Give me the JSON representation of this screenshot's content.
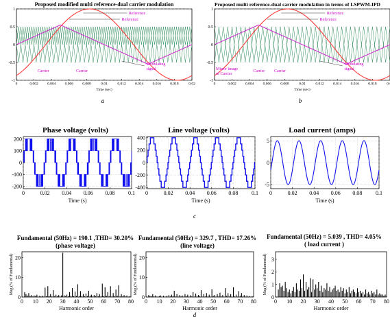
{
  "top": {
    "a": {
      "title": "Proposed modified multi reference-dual carrier modulation",
      "panel_label": "a",
      "xticks": [
        "0",
        "0.002",
        "0.004",
        "0.006",
        "0.008",
        "0.01",
        "0.012",
        "0.014",
        "0.016",
        "0.018",
        "0.02"
      ],
      "yticks": [
        "1",
        "0.5",
        "0",
        "-0.5",
        "-1"
      ],
      "xlabel": "Time (sec)",
      "annotations": {
        "ref1": "Reference",
        "ref2": "Reference",
        "carrier1": "Carrier",
        "carrier2": "Carrier",
        "sub1": "1",
        "sub2": "2",
        "mod1": "Modulating",
        "mod2": "signal"
      }
    },
    "b": {
      "title": "Proposed multi reference-dual carrier modulation in terms of LSPWM-IPD",
      "panel_label": "b",
      "xticks": [
        "0",
        "0.002",
        "0.004",
        "0.006",
        "0.008",
        "0.01",
        "0.012",
        "0.014",
        "0.016",
        "0.018",
        "0.02"
      ],
      "yticks": [
        "1",
        "0.5",
        "0",
        "-0.5",
        "-1"
      ],
      "xlabel": "Time (sec)",
      "annotations": {
        "ref1": "Reference",
        "ref2": "Reference",
        "mirror1": "Mirror image",
        "mirror2": "of Carrier",
        "carrier1": "Carrier",
        "carrier2": "Carrier",
        "sub1": "1",
        "sub2": "2",
        "mod1": "Modulating",
        "mod2": "signal"
      }
    }
  },
  "middle": {
    "panel_label": "c",
    "plots": [
      {
        "title": "Phase voltage  (volts)",
        "xlabel": "Time (s)",
        "xticks": [
          "0",
          "0.02",
          "0.04",
          "0.06",
          "0.08",
          "0.1"
        ],
        "yticks": [
          "200",
          "100",
          "0",
          "-100",
          "-200"
        ]
      },
      {
        "title": "Line voltage (volts)",
        "xlabel": "Time (s)",
        "xticks": [
          "0",
          "0.02",
          "0.04",
          "0.06",
          "0.08",
          "0.1"
        ],
        "yticks": [
          "400",
          "200",
          "0",
          "-200",
          "-400"
        ]
      },
      {
        "title": "Load current (amps)",
        "xlabel": "Time (s)",
        "xticks": [
          "0",
          "0.02",
          "0.04",
          "0.06",
          "0.08",
          "0.1"
        ],
        "yticks": [
          "5",
          "0",
          "-5"
        ]
      }
    ]
  },
  "bottom": {
    "panel_label": "d",
    "plots": [
      {
        "fund": "Fundamental (50Hz) = 190.1 ,THD= 30.20%",
        "sub": "(phase voltage)",
        "ylabel": "Mag (% of Fundamental)",
        "xlabel": "Harmonic order",
        "xticks": [
          "0",
          "10",
          "20",
          "30",
          "40",
          "50",
          "60",
          "70",
          "80"
        ],
        "yticks": [
          "20",
          "10",
          "0"
        ]
      },
      {
        "fund": "Fundamental (50Hz) = 329.7 , THD= 17.26%",
        "sub": "(line voltage)",
        "ylabel": "Mag (% of Fundamental)",
        "xlabel": "Harmonic order",
        "xticks": [
          "0",
          "10",
          "20",
          "30",
          "40",
          "50",
          "60",
          "70",
          "80"
        ],
        "yticks": [
          "20",
          "10",
          "0"
        ]
      },
      {
        "fund": "Fundamental (50Hz) = 5.039 , THD= 4.05%",
        "sub": "( load current )",
        "ylabel": "Mag (% of Fundamental)",
        "xlabel": "Harmonic order",
        "xticks": [
          "0",
          "10",
          "20",
          "30",
          "40",
          "50",
          "60",
          "70",
          "80"
        ],
        "yticks": [
          "3",
          "2",
          "1",
          "0"
        ]
      }
    ]
  },
  "colors": {
    "reference": "#ff3b3b",
    "modulating": "#cc33cc",
    "carrier": "#2e8b57",
    "wave": "#1010ee",
    "bars": "#000000",
    "annot": "#cc00cc"
  },
  "chart_data": [
    {
      "type": "line",
      "title": "Proposed modified multi reference-dual carrier modulation",
      "xlabel": "Time (sec)",
      "xlim": [
        0,
        0.02
      ],
      "ylim": [
        -1,
        1
      ],
      "series": [
        {
          "name": "Reference",
          "function": "sine",
          "frequency_hz": 50,
          "amplitude": 1,
          "phase_deg": -60
        },
        {
          "name": "Modulating signal",
          "function": "triangle",
          "frequency_hz": 50,
          "min": -0.55,
          "max": 0.55
        },
        {
          "name": "Carrier 1",
          "function": "triangle",
          "min": 0,
          "max": 0.5,
          "periods": 40
        },
        {
          "name": "Carrier 2",
          "function": "triangle",
          "min": 0,
          "max": 0.5,
          "periods": 40
        }
      ]
    },
    {
      "type": "line",
      "title": "Proposed multi reference-dual carrier modulation in terms of LSPWM-IPD",
      "xlabel": "Time (sec)",
      "xlim": [
        0,
        0.02
      ],
      "ylim": [
        -1,
        1
      ],
      "series": [
        {
          "name": "Reference",
          "function": "sine",
          "frequency_hz": 50,
          "amplitude": 1,
          "phase_deg": -60
        },
        {
          "name": "Modulating signal",
          "function": "triangle",
          "frequency_hz": 50,
          "min": -0.55,
          "max": 0.55
        },
        {
          "name": "Carrier 1",
          "function": "triangle",
          "min": 0,
          "max": 0.5,
          "periods": 40
        },
        {
          "name": "Carrier 2",
          "function": "triangle",
          "min": -0.5,
          "max": 0,
          "periods": 40
        }
      ]
    },
    {
      "type": "line",
      "title": "Phase voltage  (volts)",
      "xlabel": "Time (s)",
      "xlim": [
        0,
        0.1
      ],
      "ylim": [
        -220,
        220
      ],
      "series": [
        {
          "function": "5-level PWM",
          "frequency_hz": 50,
          "levels": [
            -200,
            -100,
            0,
            100,
            200
          ]
        }
      ]
    },
    {
      "type": "line",
      "title": "Line voltage (volts)",
      "xlabel": "Time (s)",
      "xlim": [
        0,
        0.1
      ],
      "ylim": [
        -420,
        420
      ],
      "series": [
        {
          "function": "9-level stepped",
          "frequency_hz": 50,
          "levels": [
            -400,
            -300,
            -200,
            -100,
            0,
            100,
            200,
            300,
            400
          ]
        }
      ]
    },
    {
      "type": "line",
      "title": "Load current (amps)",
      "xlabel": "Time (s)",
      "xlim": [
        0,
        0.1
      ],
      "ylim": [
        -6,
        6
      ],
      "series": [
        {
          "function": "sine",
          "frequency_hz": 50,
          "amplitude": 5.039
        }
      ]
    },
    {
      "type": "bar",
      "title": "Fundamental (50Hz) = 190.1 ,THD= 30.20%",
      "subtitle": "(phase voltage)",
      "xlabel": "Harmonic order",
      "ylabel": "Mag (% of Fundamental)",
      "xlim": [
        0,
        80
      ],
      "ylim": [
        0,
        23
      ],
      "x": [
        2,
        3,
        4,
        5,
        6,
        7,
        8,
        9,
        10,
        11,
        12,
        13,
        14,
        15,
        16,
        17,
        18,
        19,
        20,
        21,
        22,
        23,
        24,
        25,
        26,
        27,
        28,
        29,
        30,
        31,
        32,
        33,
        34,
        35,
        36,
        37,
        38,
        39,
        40,
        41,
        42,
        43,
        44,
        45,
        46,
        47,
        48,
        49,
        50,
        51,
        52,
        53,
        54,
        55,
        56,
        57,
        58,
        59,
        60,
        61,
        62,
        63,
        64,
        65,
        66,
        67,
        68,
        69,
        70,
        71,
        72,
        73,
        74,
        75,
        76,
        77,
        78,
        79,
        80
      ],
      "values": [
        2.5,
        1.5,
        0.8,
        2.0,
        0.5,
        1.0,
        0.3,
        0.8,
        0.4,
        1.2,
        0.2,
        0.6,
        0.3,
        0.7,
        0.2,
        4.8,
        0.5,
        5.5,
        0.6,
        1.5,
        0.3,
        3.5,
        0.4,
        1.2,
        0.5,
        1.0,
        0.3,
        0.8,
        22.5,
        0.9,
        0.4,
        1.2,
        0.5,
        2.5,
        0.6,
        4.5,
        0.5,
        2.8,
        0.4,
        6.5,
        0.6,
        3.0,
        0.5,
        1.5,
        0.4,
        1.8,
        0.5,
        3.2,
        0.6,
        1.2,
        0.3,
        1.0,
        0.5,
        2.0,
        0.4,
        1.5,
        0.3,
        6.8,
        0.5,
        5.0,
        0.6,
        2.5,
        0.4,
        5.5,
        0.3,
        2.0,
        0.5,
        3.8,
        0.4,
        6.0,
        0.3,
        1.5,
        0.4,
        1.0,
        0.3,
        0.8,
        0.2,
        0.5,
        0.2
      ]
    },
    {
      "type": "bar",
      "title": "Fundamental (50Hz) = 329.7 , THD= 17.26%",
      "subtitle": "(line voltage)",
      "xlabel": "Harmonic order",
      "ylabel": "Mag (% of Fundamental)",
      "xlim": [
        0,
        80
      ],
      "ylim": [
        0,
        23
      ],
      "x": [
        2,
        3,
        4,
        5,
        6,
        7,
        8,
        9,
        10,
        11,
        12,
        13,
        14,
        15,
        16,
        17,
        18,
        19,
        20,
        21,
        22,
        23,
        24,
        25,
        26,
        27,
        28,
        29,
        30,
        31,
        32,
        33,
        34,
        35,
        36,
        37,
        38,
        39,
        40,
        41,
        42,
        43,
        44,
        45,
        46,
        47,
        48,
        49,
        50,
        51,
        52,
        53,
        54,
        55,
        56,
        57,
        58,
        59,
        60,
        61,
        62,
        63,
        64,
        65,
        66,
        67,
        68,
        69,
        70,
        71,
        72,
        73,
        74,
        75,
        76,
        77,
        78,
        79,
        80
      ],
      "values": [
        1.0,
        0.6,
        0.5,
        1.5,
        0.3,
        0.8,
        0.2,
        0.3,
        0.3,
        0.8,
        0.2,
        0.7,
        0.2,
        0.5,
        0.2,
        1.0,
        0.3,
        1.2,
        0.4,
        3.2,
        0.3,
        1.5,
        0.2,
        1.0,
        0.3,
        0.8,
        0.2,
        1.5,
        0.3,
        1.2,
        0.2,
        0.9,
        0.3,
        2.5,
        0.2,
        1.8,
        0.3,
        1.0,
        0.3,
        3.5,
        0.2,
        1.5,
        0.3,
        2.0,
        0.3,
        1.2,
        0.2,
        4.0,
        0.3,
        1.0,
        0.2,
        1.5,
        0.3,
        2.2,
        0.3,
        1.0,
        0.2,
        4.5,
        0.3,
        2.0,
        0.3,
        1.5,
        0.2,
        5.0,
        0.3,
        1.2,
        0.2,
        3.0,
        0.3,
        2.0,
        0.3,
        1.0,
        0.2,
        0.8,
        0.2,
        0.5,
        0.2,
        0.4,
        0.2
      ]
    },
    {
      "type": "bar",
      "title": "Fundamental (50Hz) = 5.039 , THD= 4.05%",
      "subtitle": "( load current )",
      "xlabel": "Harmonic order",
      "ylabel": "Mag (% of Fundamental)",
      "xlim": [
        0,
        80
      ],
      "ylim": [
        0,
        3.6
      ],
      "x": [
        2,
        3,
        4,
        5,
        6,
        7,
        8,
        9,
        10,
        11,
        12,
        13,
        14,
        15,
        16,
        17,
        18,
        19,
        20,
        21,
        22,
        23,
        24,
        25,
        26,
        27,
        28,
        29,
        30,
        31,
        32,
        33,
        34,
        35,
        36,
        37,
        38,
        39,
        40,
        41,
        42,
        43,
        44,
        45,
        46,
        47,
        48,
        49,
        50,
        51,
        52,
        53,
        54,
        55,
        56,
        57,
        58,
        59,
        60,
        61,
        62,
        63,
        64,
        65,
        66,
        67,
        68,
        69,
        70,
        71,
        72,
        73,
        74,
        75,
        76,
        77,
        78,
        79,
        80
      ],
      "values": [
        0.6,
        1.1,
        0.8,
        0.9,
        0.5,
        1.2,
        0.7,
        0.4,
        0.6,
        0.3,
        0.5,
        0.8,
        0.4,
        1.1,
        0.6,
        0.5,
        1.4,
        0.7,
        1.8,
        0.5,
        1.2,
        0.6,
        0.8,
        1.5,
        0.4,
        1.4,
        0.6,
        1.0,
        0.7,
        1.2,
        0.5,
        0.9,
        0.4,
        0.7,
        0.6,
        1.1,
        0.5,
        0.8,
        0.4,
        0.6,
        0.7,
        0.9,
        0.5,
        0.6,
        0.4,
        0.8,
        0.5,
        0.7,
        0.3,
        0.6,
        0.4,
        0.8,
        0.3,
        0.5,
        0.6,
        0.4,
        0.3,
        0.7,
        0.4,
        0.5,
        0.3,
        0.4,
        0.2,
        0.6,
        0.3,
        0.4,
        0.2,
        0.5,
        0.3,
        0.4,
        0.2,
        0.6,
        0.2,
        0.3,
        0.2,
        0.2,
        0.1,
        0.2,
        0.1
      ]
    }
  ]
}
